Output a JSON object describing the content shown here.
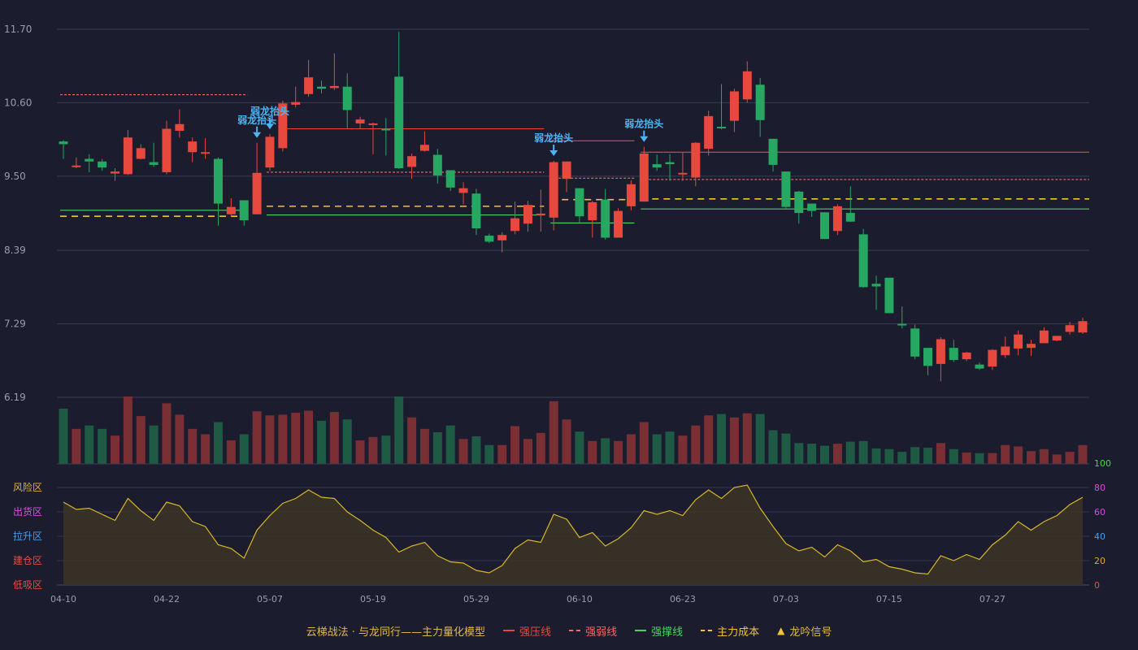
{
  "colors": {
    "background": "#1b1c2e",
    "up": "#e8493e",
    "down": "#26a862",
    "resist": "#e8493e",
    "weak": "#f06a6a",
    "support": "#4cd263",
    "cost": "#f1c232",
    "signal": "#4fb4f2",
    "osc_line": "#d8b62a"
  },
  "chart_data": [
    {
      "type": "candlestick",
      "ylim": [
        6.19,
        11.7
      ],
      "yticks": [
        "11.70",
        "10.60",
        "9.50",
        "8.39",
        "7.29",
        "6.19"
      ],
      "xticks": [
        {
          "i": 0,
          "label": "04-10"
        },
        {
          "i": 8,
          "label": "04-22"
        },
        {
          "i": 16,
          "label": "05-07"
        },
        {
          "i": 24,
          "label": "05-19"
        },
        {
          "i": 32,
          "label": "05-29"
        },
        {
          "i": 40,
          "label": "06-10"
        },
        {
          "i": 48,
          "label": "06-23"
        },
        {
          "i": 56,
          "label": "07-03"
        },
        {
          "i": 64,
          "label": "07-15"
        },
        {
          "i": 72,
          "label": "07-27"
        }
      ],
      "ohlc": [
        [
          10.02,
          9.98,
          10.04,
          9.76
        ],
        [
          9.65,
          9.66,
          9.78,
          9.62
        ],
        [
          9.76,
          9.72,
          9.83,
          9.56
        ],
        [
          9.72,
          9.63,
          9.76,
          9.58
        ],
        [
          9.54,
          9.57,
          9.62,
          9.43
        ],
        [
          9.53,
          10.08,
          10.19,
          9.52
        ],
        [
          9.76,
          9.92,
          9.98,
          9.75
        ],
        [
          9.71,
          9.67,
          10.0,
          9.64
        ],
        [
          9.56,
          10.21,
          10.33,
          9.53
        ],
        [
          10.18,
          10.28,
          10.5,
          10.08
        ],
        [
          9.86,
          10.02,
          10.08,
          9.71
        ],
        [
          9.85,
          9.86,
          10.07,
          9.76
        ],
        [
          9.76,
          9.09,
          9.78,
          8.76
        ],
        [
          8.93,
          9.04,
          9.17,
          8.9
        ],
        [
          9.14,
          8.84,
          9.14,
          8.76
        ],
        [
          8.93,
          9.55,
          10.0,
          8.93
        ],
        [
          9.63,
          10.09,
          10.13,
          9.58
        ],
        [
          9.92,
          10.59,
          10.63,
          9.87
        ],
        [
          10.57,
          10.61,
          10.84,
          10.53
        ],
        [
          10.73,
          10.98,
          11.24,
          10.69
        ],
        [
          10.84,
          10.81,
          10.93,
          10.74
        ],
        [
          10.82,
          10.85,
          11.34,
          10.79
        ],
        [
          10.84,
          10.49,
          11.04,
          10.22
        ],
        [
          10.29,
          10.35,
          10.39,
          10.21
        ],
        [
          10.27,
          10.29,
          10.3,
          9.83
        ],
        [
          10.21,
          10.19,
          10.37,
          9.81
        ],
        [
          10.99,
          9.62,
          11.66,
          9.61
        ],
        [
          9.64,
          9.8,
          9.84,
          9.46
        ],
        [
          9.88,
          9.97,
          10.17,
          9.87
        ],
        [
          9.82,
          9.51,
          9.91,
          9.39
        ],
        [
          9.59,
          9.33,
          9.59,
          9.28
        ],
        [
          9.25,
          9.32,
          9.41,
          9.08
        ],
        [
          9.24,
          8.72,
          9.31,
          8.62
        ],
        [
          8.61,
          8.52,
          8.64,
          8.5
        ],
        [
          8.54,
          8.62,
          8.66,
          8.36
        ],
        [
          8.68,
          8.87,
          9.12,
          8.63
        ],
        [
          8.79,
          9.07,
          9.13,
          8.67
        ],
        [
          8.94,
          8.94,
          9.3,
          8.67
        ],
        [
          8.88,
          9.71,
          9.73,
          8.69
        ],
        [
          9.46,
          9.72,
          9.72,
          9.26
        ],
        [
          9.32,
          8.9,
          9.32,
          8.81
        ],
        [
          8.84,
          9.11,
          9.13,
          8.58
        ],
        [
          9.15,
          8.58,
          9.31,
          8.55
        ],
        [
          8.58,
          8.98,
          9.02,
          8.69
        ],
        [
          9.05,
          9.38,
          9.44,
          8.99
        ],
        [
          9.12,
          9.84,
          9.94,
          9.12
        ],
        [
          9.68,
          9.63,
          9.82,
          9.58
        ],
        [
          9.71,
          9.68,
          9.83,
          9.43
        ],
        [
          9.53,
          9.55,
          9.85,
          9.43
        ],
        [
          9.48,
          10.0,
          10.01,
          9.35
        ],
        [
          9.91,
          10.4,
          10.48,
          9.81
        ],
        [
          10.24,
          10.22,
          10.88,
          10.2
        ],
        [
          10.33,
          10.77,
          10.81,
          10.16
        ],
        [
          10.65,
          11.07,
          11.22,
          10.6
        ],
        [
          10.87,
          10.34,
          10.97,
          10.09
        ],
        [
          10.06,
          9.67,
          10.06,
          9.57
        ],
        [
          9.57,
          9.04,
          9.57,
          9.0
        ],
        [
          9.27,
          8.95,
          9.28,
          8.79
        ],
        [
          9.09,
          8.98,
          9.09,
          8.89
        ],
        [
          8.96,
          8.56,
          8.96,
          8.56
        ],
        [
          8.68,
          9.05,
          9.08,
          8.62
        ],
        [
          8.95,
          8.82,
          9.35,
          8.82
        ],
        [
          8.63,
          7.84,
          8.71,
          7.83
        ],
        [
          7.89,
          7.85,
          8.01,
          7.5
        ],
        [
          7.98,
          7.45,
          7.98,
          7.45
        ],
        [
          7.29,
          7.28,
          7.55,
          7.22
        ],
        [
          7.22,
          6.8,
          7.28,
          6.76
        ],
        [
          6.93,
          6.66,
          6.93,
          6.52
        ],
        [
          6.69,
          7.06,
          7.09,
          6.43
        ],
        [
          6.93,
          6.75,
          7.05,
          6.72
        ],
        [
          6.76,
          6.86,
          6.87,
          6.73
        ],
        [
          6.68,
          6.62,
          6.71,
          6.6
        ],
        [
          6.65,
          6.9,
          6.91,
          6.6
        ],
        [
          6.82,
          6.95,
          7.1,
          6.78
        ],
        [
          6.92,
          7.13,
          7.19,
          6.82
        ],
        [
          6.93,
          6.99,
          7.05,
          6.81
        ],
        [
          7.0,
          7.19,
          7.24,
          7.0
        ],
        [
          7.04,
          7.11,
          7.11,
          7.03
        ],
        [
          7.17,
          7.27,
          7.32,
          7.13
        ],
        [
          7.16,
          7.33,
          7.38,
          7.14
        ]
      ],
      "levels": [
        {
          "kind": "resist",
          "from": 17,
          "to": 37,
          "value": 10.21
        },
        {
          "kind": "resist",
          "from": 38,
          "to": 44,
          "value": 10.03
        },
        {
          "kind": "resist",
          "from": 45,
          "to": 80,
          "value": 9.86
        },
        {
          "kind": "weak",
          "from": 0,
          "to": 14,
          "value": 10.72
        },
        {
          "kind": "weak",
          "from": 16,
          "to": 37,
          "value": 9.56
        },
        {
          "kind": "weak",
          "from": 38,
          "to": 44,
          "value": 9.47
        },
        {
          "kind": "weak",
          "from": 45,
          "to": 80,
          "value": 9.45
        },
        {
          "kind": "support",
          "from": 0,
          "to": 14,
          "value": 8.99
        },
        {
          "kind": "support",
          "from": 16,
          "to": 37,
          "value": 8.92
        },
        {
          "kind": "support",
          "from": 38,
          "to": 44,
          "value": 8.8
        },
        {
          "kind": "support",
          "from": 45,
          "to": 80,
          "value": 9.01
        },
        {
          "kind": "cost",
          "from": 0,
          "to": 14,
          "value": 8.9
        },
        {
          "kind": "cost",
          "from": 16,
          "to": 37,
          "value": 9.05
        },
        {
          "kind": "cost",
          "from": 38,
          "to": 44,
          "value": 9.15
        },
        {
          "kind": "cost",
          "from": 45,
          "to": 80,
          "value": 9.16
        }
      ],
      "signals": [
        {
          "i": 15,
          "label": "弱龙抬头"
        },
        {
          "i": 16,
          "label": "弱龙抬头"
        },
        {
          "i": 38,
          "label": "弱龙抬头"
        },
        {
          "i": 45,
          "label": "弱龙抬头"
        }
      ]
    },
    {
      "type": "bar",
      "title": "volume",
      "values": [
        82,
        52,
        57,
        52,
        42,
        100,
        71,
        57,
        90,
        73,
        52,
        44,
        62,
        35,
        44,
        78,
        72,
        73,
        76,
        79,
        64,
        77,
        66,
        35,
        40,
        42,
        100,
        69,
        52,
        47,
        57,
        37,
        41,
        28,
        28,
        56,
        37,
        46,
        93,
        66,
        48,
        34,
        38,
        34,
        44,
        62,
        44,
        48,
        42,
        57,
        72,
        74,
        69,
        75,
        74,
        50,
        45,
        31,
        30,
        27,
        30,
        33,
        34,
        23,
        22,
        18,
        25,
        24,
        31,
        22,
        17,
        16,
        16,
        28,
        26,
        19,
        22,
        14,
        18,
        28
      ]
    },
    {
      "type": "area",
      "title": "oscillator",
      "ylim": [
        0,
        100
      ],
      "yticks": [
        "100",
        "80",
        "60",
        "40",
        "20",
        "0"
      ],
      "zones": [
        "风险区",
        "出货区",
        "拉升区",
        "建仓区",
        "低吸区"
      ],
      "values": [
        68,
        62,
        63,
        58,
        53,
        71,
        61,
        53,
        68,
        65,
        52,
        48,
        33,
        30,
        22,
        45,
        57,
        67,
        71,
        78,
        72,
        71,
        60,
        53,
        45,
        39,
        27,
        32,
        35,
        24,
        19,
        18,
        12,
        10,
        16,
        30,
        37,
        35,
        58,
        54,
        39,
        43,
        32,
        38,
        47,
        61,
        58,
        61,
        57,
        70,
        78,
        71,
        80,
        82,
        63,
        48,
        34,
        28,
        31,
        23,
        33,
        28,
        19,
        21,
        15,
        13,
        10,
        9,
        24,
        20,
        25,
        21,
        33,
        41,
        52,
        45,
        52,
        57,
        66,
        72
      ]
    }
  ],
  "legend": [
    {
      "label": "云梯战法 · 与龙同行——主力量化模型",
      "kind": "title"
    },
    {
      "label": "强压线",
      "kind": "resist"
    },
    {
      "label": "强弱线",
      "kind": "weak"
    },
    {
      "label": "强撑线",
      "kind": "support"
    },
    {
      "label": "主力成本",
      "kind": "cost"
    },
    {
      "label": "龙吟信号",
      "kind": "signal"
    }
  ]
}
